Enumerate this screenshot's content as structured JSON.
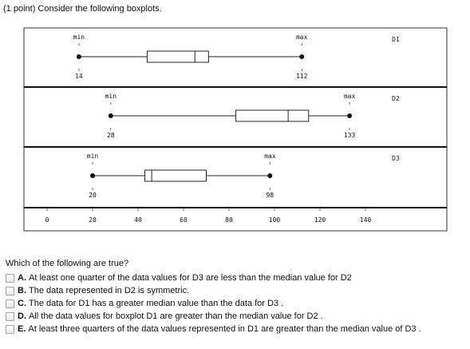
{
  "prompt": "(1 point) Consider the following boxplots.",
  "chart_data": {
    "type": "boxplot",
    "xlim": [
      -3,
      158
    ],
    "x_ticks": [
      0,
      20,
      40,
      60,
      80,
      100,
      120,
      140
    ],
    "x_tick_labels": [
      "0",
      "20",
      "40",
      "60",
      "80",
      "100",
      "120",
      "140"
    ],
    "series": [
      {
        "name": "D1",
        "min": 14,
        "q1": 44,
        "median": 65,
        "q3": 71,
        "max": 112,
        "min_label": "min",
        "max_label": "max",
        "min_value_label": "14",
        "max_value_label": "112"
      },
      {
        "name": "D2",
        "min": 28,
        "q1": 83,
        "median": 106,
        "q3": 115,
        "max": 133,
        "min_label": "min",
        "max_label": "max",
        "min_value_label": "28",
        "max_value_label": "133"
      },
      {
        "name": "D3",
        "min": 20,
        "q1": 43,
        "median": 46,
        "q3": 70,
        "max": 98,
        "min_label": "min",
        "max_label": "max",
        "min_value_label": "20",
        "max_value_label": "98"
      }
    ]
  },
  "question": "Which of the following are true?",
  "options": [
    {
      "letter": "A.",
      "text": "At least one quarter of the data values for D3 are less than the median value for D2"
    },
    {
      "letter": "B.",
      "text": "The data represented in D2 is symmetric."
    },
    {
      "letter": "C.",
      "text": "The data for D1 has a greater median value than the data for D3 ."
    },
    {
      "letter": "D.",
      "text": "All the data values for boxplot D1 are greater than the median value for D2 ."
    },
    {
      "letter": "E.",
      "text": "At least three quarters of the data values represented in D1 are greater than the median value of D3 ."
    }
  ]
}
